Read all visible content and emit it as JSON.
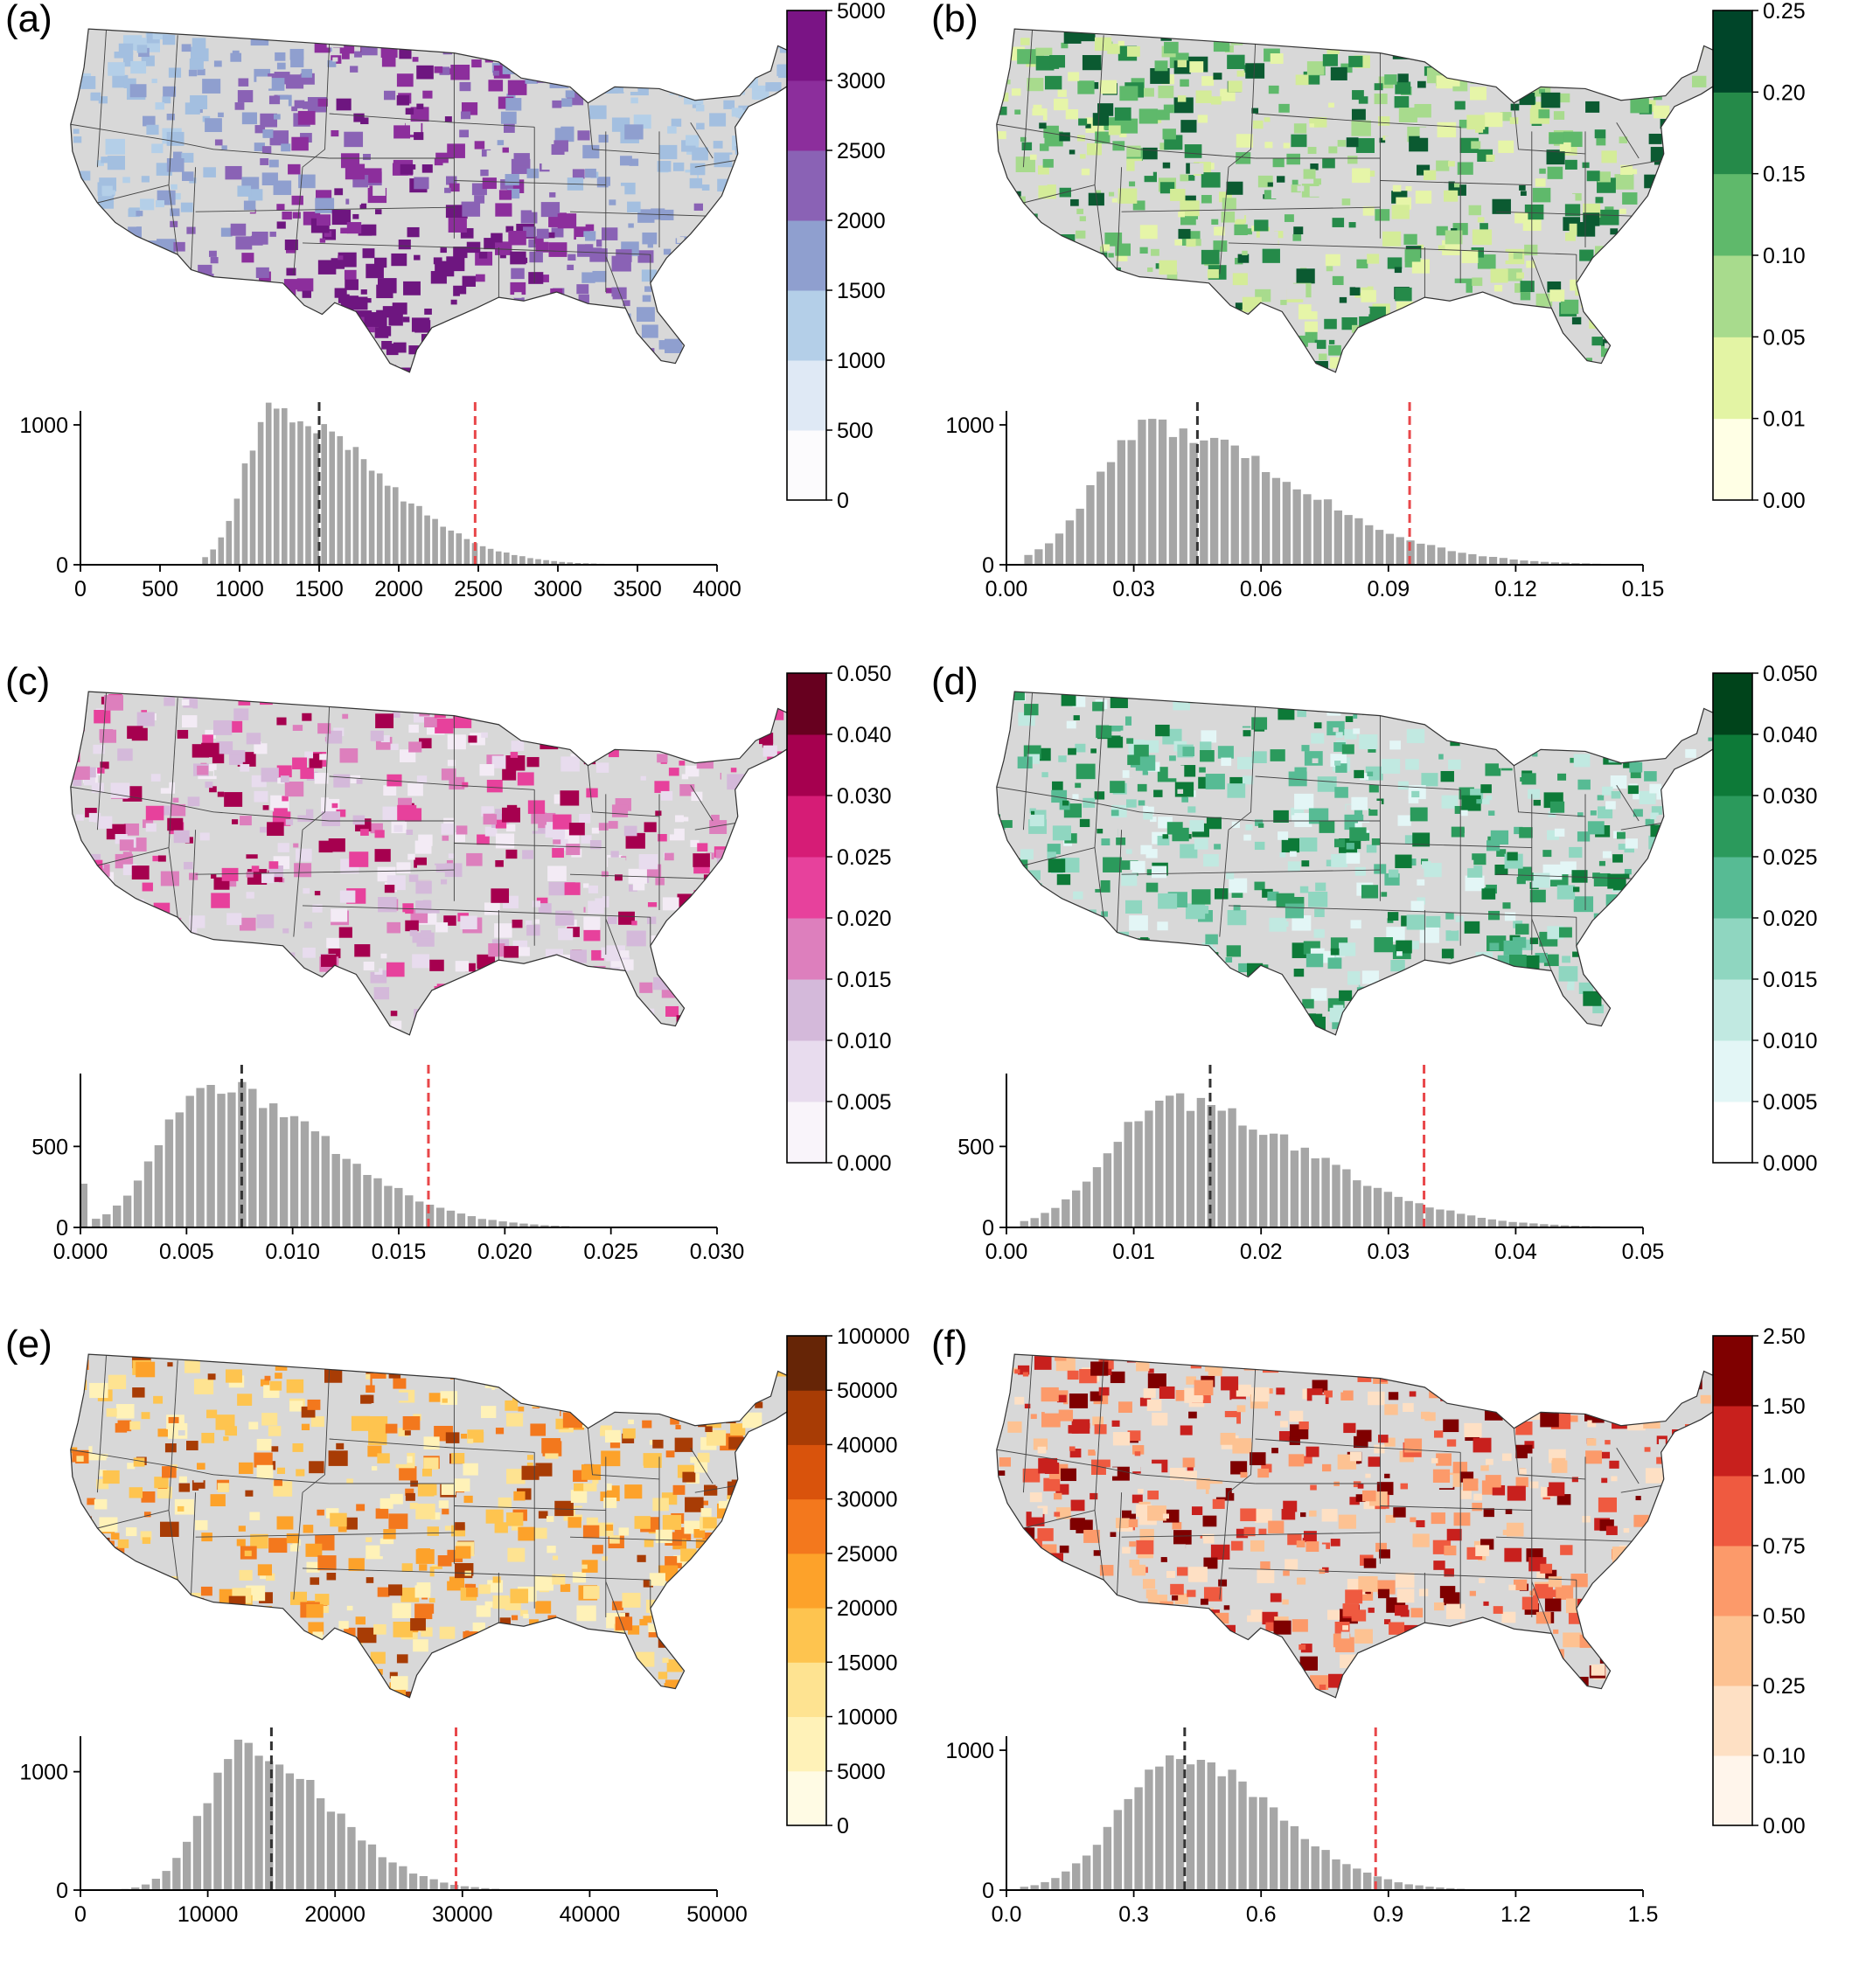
{
  "figure": {
    "panels": [
      {
        "id": "a",
        "label": "(a)"
      },
      {
        "id": "b",
        "label": "(b)"
      },
      {
        "id": "c",
        "label": "(c)"
      },
      {
        "id": "d",
        "label": "(d)"
      },
      {
        "id": "e",
        "label": "(e)"
      },
      {
        "id": "f",
        "label": "(f)"
      }
    ]
  },
  "chart_data": [
    {
      "panel": "a",
      "type": "heatmap",
      "colorbar": {
        "ticks": [
          "0",
          "500",
          "1000",
          "1500",
          "2000",
          "2500",
          "3000",
          "5000"
        ],
        "colors": [
          "#fcfbfd",
          "#dfe9f5",
          "#b4cfe8",
          "#8f9fcf",
          "#8a62b5",
          "#8c2e9c",
          "#7a1485",
          "#4d004b"
        ]
      },
      "map_palette": [
        "#b4cfe8",
        "#a3bfe0",
        "#8f9fcf",
        "#8a62b5",
        "#8c2e9c",
        "#6e1680",
        "#d8d8d8"
      ],
      "histogram": {
        "type": "bar",
        "xlim": [
          0,
          4000
        ],
        "xticks": [
          "0",
          "500",
          "1000",
          "1500",
          "2000",
          "2500",
          "3000",
          "3500",
          "4000"
        ],
        "yticks": [
          "0",
          "1000"
        ],
        "ymax": 1100,
        "dist": {
          "mode": 1200,
          "peak": 1100,
          "sl": 170,
          "sr": 650,
          "start": 760,
          "end": 3750,
          "nbins": 60
        },
        "median": 1500,
        "p95": 2480
      }
    },
    {
      "panel": "b",
      "type": "heatmap",
      "colorbar": {
        "ticks": [
          "0.00",
          "0.01",
          "0.05",
          "0.10",
          "0.15",
          "0.20",
          "0.25"
        ],
        "colors": [
          "#ffffe5",
          "#e3f4a4",
          "#a8db8d",
          "#5fb96b",
          "#258a49",
          "#004529"
        ]
      },
      "map_palette": [
        "#e6f5a8",
        "#d4ec98",
        "#a8db8d",
        "#5fb96b",
        "#258a49",
        "#0b5a31",
        "#d8d8d8"
      ],
      "histogram": {
        "type": "bar",
        "xlim": [
          0,
          0.15
        ],
        "xticks": [
          "0.00",
          "0.03",
          "0.06",
          "0.09",
          "0.12",
          "0.15"
        ],
        "yticks": [
          "0",
          "1000"
        ],
        "ymax": 1100,
        "dist": {
          "mode": 0.033,
          "peak": 980,
          "sl": 0.012,
          "sr": 0.034,
          "start": 0.004,
          "end": 0.15,
          "nbins": 60
        },
        "median": 0.045,
        "p95": 0.095
      }
    },
    {
      "panel": "c",
      "type": "heatmap",
      "colorbar": {
        "ticks": [
          "0.000",
          "0.005",
          "0.010",
          "0.015",
          "0.020",
          "0.025",
          "0.030",
          "0.040",
          "0.050"
        ],
        "colors": [
          "#f9f4fa",
          "#e8dcee",
          "#d4b9da",
          "#dd7fbd",
          "#e7419c",
          "#d61c76",
          "#a6004f",
          "#67001f"
        ]
      },
      "map_palette": [
        "#f3ebf5",
        "#e8dcee",
        "#d4b9da",
        "#dd7fbd",
        "#e7419c",
        "#a6004f",
        "#d8d8d8"
      ],
      "histogram": {
        "type": "bar",
        "xlim": [
          0,
          0.03
        ],
        "xticks": [
          "0.000",
          "0.005",
          "0.010",
          "0.015",
          "0.020",
          "0.025",
          "0.030"
        ],
        "yticks": [
          "0",
          "500"
        ],
        "ymax": 950,
        "dist": {
          "mode": 0.006,
          "peak": 880,
          "sl": 0.0022,
          "sr": 0.0055,
          "start": 0.0005,
          "end": 0.03,
          "nbins": 60
        },
        "first_bin": 270,
        "median": 0.0076,
        "p95": 0.0164
      }
    },
    {
      "panel": "d",
      "type": "heatmap",
      "colorbar": {
        "ticks": [
          "0.000",
          "0.005",
          "0.010",
          "0.015",
          "0.020",
          "0.025",
          "0.030",
          "0.040",
          "0.050"
        ],
        "colors": [
          "#ffffff",
          "#e3f6f6",
          "#c1e9e1",
          "#8fd6c0",
          "#57bb94",
          "#2b9a5c",
          "#0d7a38",
          "#00441b"
        ]
      },
      "map_palette": [
        "#e3f6f6",
        "#c1e9e1",
        "#8fd6c0",
        "#57bb94",
        "#2b9a5c",
        "#0d7a38",
        "#d8d8d8"
      ],
      "histogram": {
        "type": "bar",
        "xlim": [
          0,
          0.05
        ],
        "xticks": [
          "0.00",
          "0.01",
          "0.02",
          "0.03",
          "0.04",
          "0.05"
        ],
        "yticks": [
          "0",
          "500"
        ],
        "ymax": 950,
        "dist": {
          "mode": 0.0125,
          "peak": 780,
          "sl": 0.0045,
          "sr": 0.011,
          "start": 0.001,
          "end": 0.05,
          "nbins": 60
        },
        "median": 0.016,
        "p95": 0.0328
      }
    },
    {
      "panel": "e",
      "type": "heatmap",
      "colorbar": {
        "ticks": [
          "0",
          "5000",
          "10000",
          "15000",
          "20000",
          "25000",
          "30000",
          "40000",
          "50000",
          "100000"
        ],
        "colors": [
          "#fffbe4",
          "#fff2b8",
          "#fee391",
          "#fec44f",
          "#fda22a",
          "#f3781d",
          "#d9530c",
          "#a83c05",
          "#662506"
        ]
      },
      "map_palette": [
        "#fff2b8",
        "#fee391",
        "#fec44f",
        "#fda22a",
        "#f3781d",
        "#a83c05",
        "#d8d8d8"
      ],
      "histogram": {
        "type": "bar",
        "xlim": [
          0,
          50000
        ],
        "xticks": [
          "0",
          "10000",
          "20000",
          "30000",
          "40000",
          "50000"
        ],
        "yticks": [
          "0",
          "1000"
        ],
        "ymax": 1300,
        "dist": {
          "mode": 12800,
          "peak": 1220,
          "sl": 3000,
          "sr": 6500,
          "start": 1500,
          "end": 50000,
          "nbins": 60
        },
        "median": 15000,
        "p95": 29500
      }
    },
    {
      "panel": "f",
      "type": "heatmap",
      "colorbar": {
        "ticks": [
          "0.00",
          "0.10",
          "0.25",
          "0.50",
          "0.75",
          "1.00",
          "1.50",
          "2.50"
        ],
        "colors": [
          "#fff5eb",
          "#fee0c4",
          "#fdc292",
          "#fc9a6a",
          "#ef5a40",
          "#c8201d",
          "#7f0000"
        ]
      },
      "map_palette": [
        "#fee0c4",
        "#fdc292",
        "#fc9a6a",
        "#ef5a40",
        "#c8201d",
        "#7f0000",
        "#d8d8d8"
      ],
      "histogram": {
        "type": "bar",
        "xlim": [
          0,
          1.5
        ],
        "xticks": [
          "0.0",
          "0.3",
          "0.6",
          "0.9",
          "1.2",
          "1.5"
        ],
        "yticks": [
          "0",
          "1000"
        ],
        "ymax": 1100,
        "dist": {
          "mode": 0.4,
          "peak": 970,
          "sl": 0.13,
          "sr": 0.22,
          "start": 0.03,
          "end": 1.5,
          "nbins": 60
        },
        "median": 0.42,
        "p95": 0.87
      }
    }
  ]
}
